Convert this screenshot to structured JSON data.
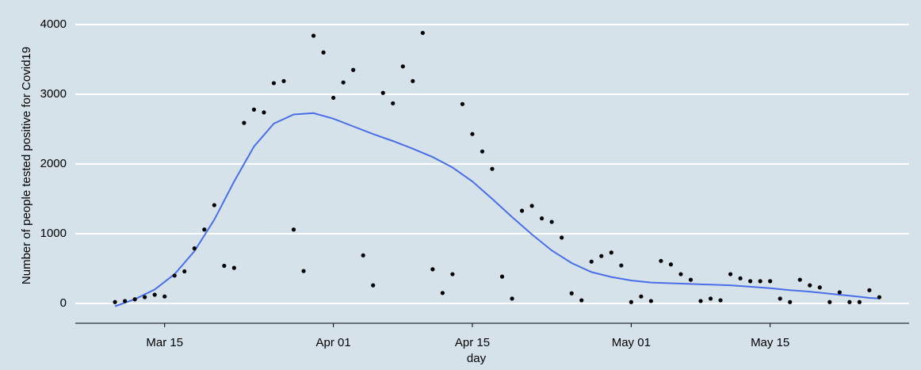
{
  "chart_data": {
    "type": "scatter",
    "x_label": "day",
    "y_label": "Number of people tested positive for Covid19",
    "xlim": [
      "Mar 06",
      "May 29"
    ],
    "xticks": [
      "Mar 15",
      "Apr 01",
      "Apr 15",
      "May 01",
      "May 15"
    ],
    "ylim": [
      -284,
      4239
    ],
    "yticks": [
      0,
      1000,
      2000,
      3000,
      4000
    ],
    "grid": true,
    "points": {
      "color": "#000000",
      "x": [
        "Mar 10",
        "Mar 11",
        "Mar 12",
        "Mar 13",
        "Mar 14",
        "Mar 15",
        "Mar 16",
        "Mar 17",
        "Mar 18",
        "Mar 19",
        "Mar 20",
        "Mar 21",
        "Mar 22",
        "Mar 23",
        "Mar 24",
        "Mar 25",
        "Mar 26",
        "Mar 27",
        "Mar 28",
        "Mar 29",
        "Mar 30",
        "Mar 31",
        "Apr 01",
        "Apr 02",
        "Apr 03",
        "Apr 04",
        "Apr 05",
        "Apr 06",
        "Apr 07",
        "Apr 08",
        "Apr 09",
        "Apr 10",
        "Apr 11",
        "Apr 12",
        "Apr 13",
        "Apr 14",
        "Apr 15",
        "Apr 16",
        "Apr 17",
        "Apr 18",
        "Apr 19",
        "Apr 20",
        "Apr 21",
        "Apr 22",
        "Apr 23",
        "Apr 24",
        "Apr 25",
        "Apr 26",
        "Apr 27",
        "Apr 28",
        "Apr 29",
        "Apr 30",
        "May 01",
        "May 02",
        "May 03",
        "May 04",
        "May 05",
        "May 06",
        "May 07",
        "May 08",
        "May 09",
        "May 10",
        "May 11",
        "May 12",
        "May 13",
        "May 14",
        "May 15",
        "May 16",
        "May 17",
        "May 18",
        "May 19",
        "May 20",
        "May 21",
        "May 22",
        "May 23",
        "May 24",
        "May 25",
        "May 26"
      ],
      "values": [
        20,
        35,
        60,
        90,
        125,
        100,
        400,
        460,
        790,
        1060,
        1410,
        540,
        510,
        2590,
        2780,
        2740,
        3160,
        3190,
        1060,
        465,
        3840,
        3600,
        2950,
        3170,
        3350,
        690,
        260,
        3020,
        2870,
        3400,
        3190,
        3880,
        490,
        150,
        420,
        2860,
        2430,
        2180,
        1930,
        385,
        70,
        1330,
        1400,
        1220,
        1170,
        945,
        145,
        45,
        600,
        680,
        730,
        545,
        20,
        100,
        35,
        610,
        560,
        420,
        340,
        35,
        70,
        45,
        420,
        360,
        320,
        320,
        320,
        70,
        20,
        340,
        260,
        230,
        20,
        160,
        20,
        20,
        190,
        90
      ]
    },
    "smooth": {
      "color": "#4a6ee8",
      "x": [
        "Mar 10",
        "Mar 12",
        "Mar 14",
        "Mar 16",
        "Mar 18",
        "Mar 20",
        "Mar 22",
        "Mar 24",
        "Mar 26",
        "Mar 28",
        "Mar 30",
        "Apr 01",
        "Apr 03",
        "Apr 05",
        "Apr 07",
        "Apr 09",
        "Apr 11",
        "Apr 13",
        "Apr 15",
        "Apr 17",
        "Apr 19",
        "Apr 21",
        "Apr 23",
        "Apr 25",
        "Apr 27",
        "Apr 29",
        "May 01",
        "May 03",
        "May 05",
        "May 07",
        "May 09",
        "May 11",
        "May 13",
        "May 15",
        "May 17",
        "May 19",
        "May 21",
        "May 23",
        "May 25",
        "May 26"
      ],
      "values": [
        -40,
        60,
        200,
        420,
        750,
        1200,
        1750,
        2250,
        2580,
        2710,
        2730,
        2650,
        2540,
        2430,
        2330,
        2220,
        2100,
        1950,
        1750,
        1500,
        1240,
        990,
        760,
        580,
        450,
        380,
        330,
        300,
        290,
        280,
        270,
        260,
        240,
        220,
        190,
        170,
        140,
        110,
        80,
        70
      ]
    }
  }
}
